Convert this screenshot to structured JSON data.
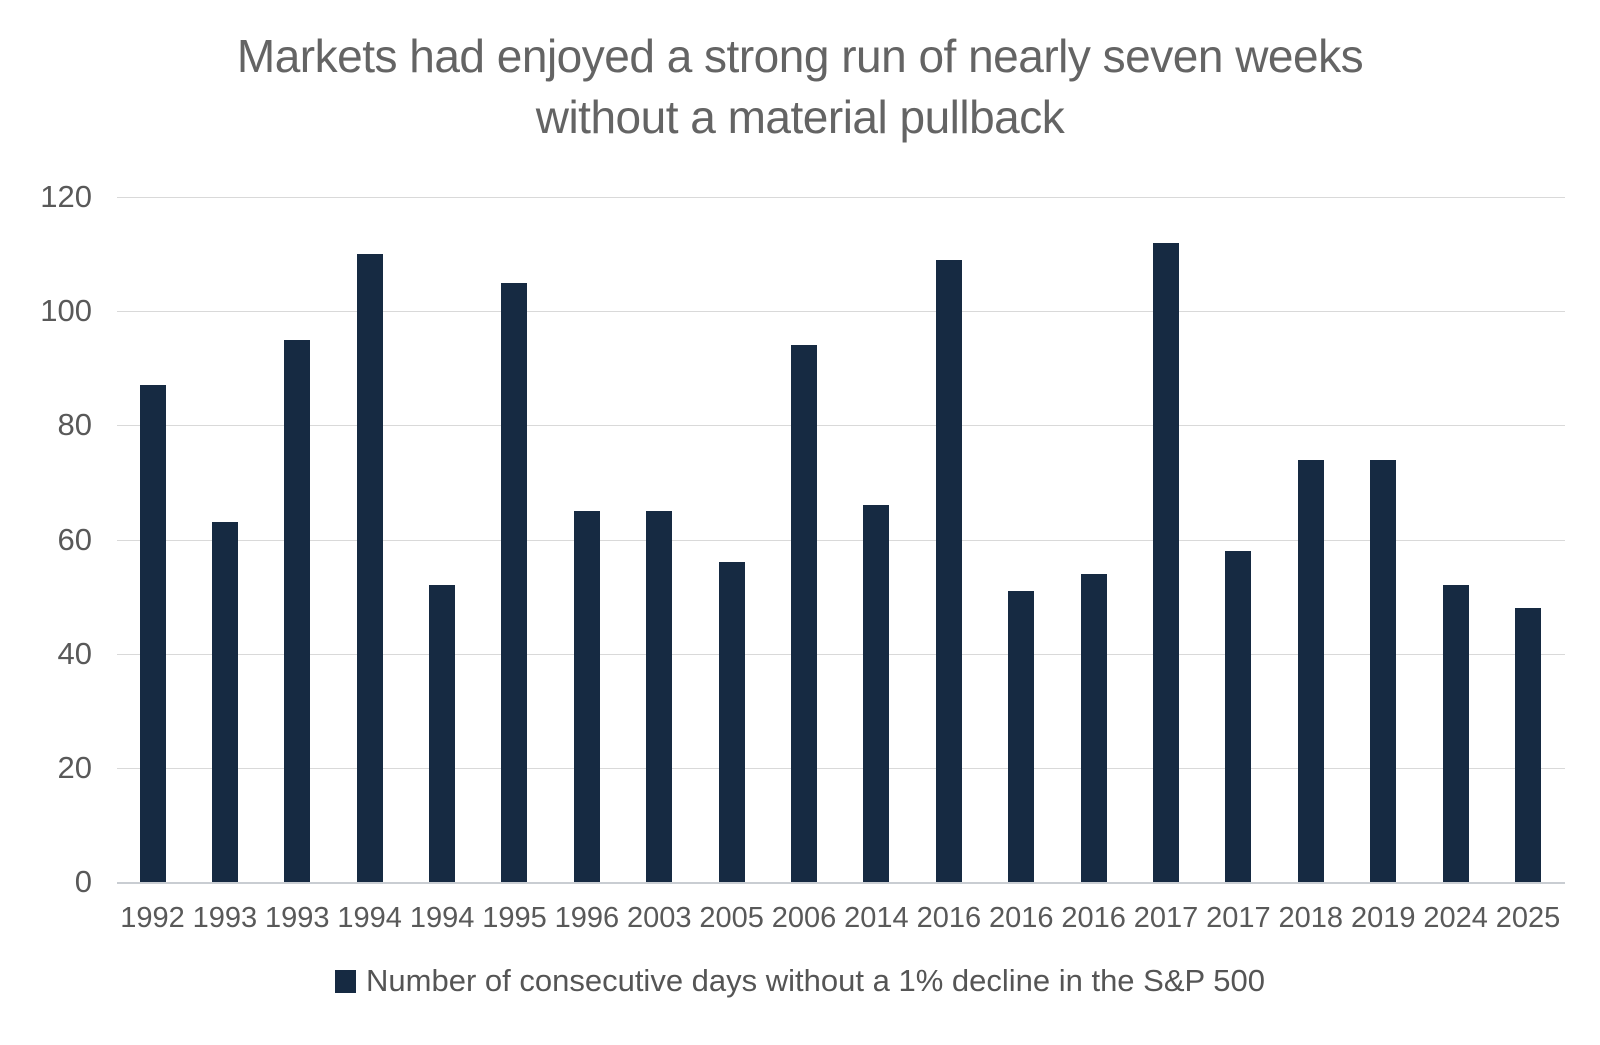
{
  "title": {
    "line1": "Markets had enjoyed a strong run of nearly seven weeks",
    "line2": "without a material pullback"
  },
  "chart_data": {
    "type": "bar",
    "title": "Markets had enjoyed a strong run of nearly seven weeks without a material pullback",
    "categories": [
      "1992",
      "1993",
      "1993",
      "1994",
      "1994",
      "1995",
      "1996",
      "2003",
      "2005",
      "2006",
      "2014",
      "2016",
      "2016",
      "2016",
      "2017",
      "2017",
      "2018",
      "2019",
      "2024",
      "2025"
    ],
    "values": [
      87,
      63,
      95,
      110,
      52,
      105,
      65,
      65,
      56,
      94,
      66,
      109,
      51,
      54,
      112,
      58,
      74,
      74,
      52,
      48
    ],
    "legend": "Number of consecutive days without a 1% decline in the S&P 500",
    "xlabel": "",
    "ylabel": "",
    "ylim": [
      0,
      120
    ],
    "yticks": [
      0,
      20,
      40,
      60,
      80,
      100,
      120
    ],
    "grid": true,
    "legend_position": "bottom"
  },
  "colors": {
    "bar": "#162a42",
    "title_text": "#646464",
    "axis_text": "#595959",
    "gridline": "#d9d9d9",
    "background": "#ffffff"
  }
}
